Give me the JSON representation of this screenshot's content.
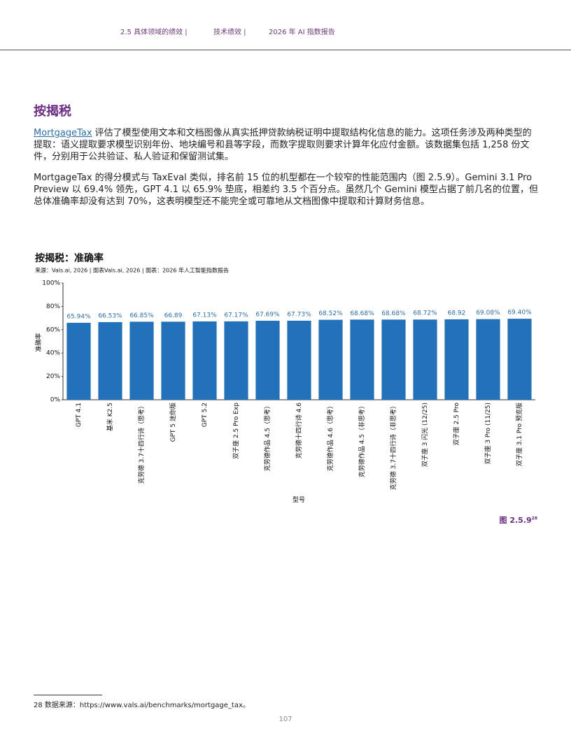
{
  "header": {
    "items": [
      "2.5 具体领域的绩效 |",
      "技术绩效 |",
      "2026 年 AI 指数报告"
    ]
  },
  "section_title": "按揭税",
  "paragraphs": [
    {
      "link": "MortgageTax",
      "text": " 评估了模型使用文本和文档图像从真实抵押贷款纳税证明中提取结构化信息的能力。这项任务涉及两种类型的提取：语义提取要求模型识别年份、地块编号和县等字段，而数字提取则要求计算年化应付金额。该数据集包括 1,258 份文件，分别用于公共验证、私人验证和保留测试集。"
    },
    {
      "text": "MortgageTax 的得分模式与 TaxEval 类似，排名前 15 位的机型都在一个较窄的性能范围内（图 2.5.9）。Gemini 3.1 Pro Preview 以 69.4% 领先，GPT 4.1 以 65.9% 垫底，相差约 3.5 个百分点。虽然几个 Gemini 模型占据了前几名的位置，但总体准确率却没有达到 70%，这表明模型还不能完全或可靠地从文档图像中提取和计算财务信息。"
    }
  ],
  "chart_data": {
    "type": "bar",
    "title": "按揭税：准确率",
    "source": "来源：Vals.ai, 2026 | 图表Vals.ai, 2026 | 图表：2026 年人工智能指数报告",
    "x_label": "型号",
    "y_label": "准确率",
    "categories": [
      "GPT 4.1",
      "基米 K2.5",
      "克劳德 3.7十四行诗（思考）",
      "GPT 5 迷你版",
      "GPT 5.2",
      "双子座 2.5 Pro Exp",
      "克劳德作品 4.5（思考）",
      "克劳德十四行诗 4.6",
      "克劳德作品 4.6（思考）",
      "克劳德作品 4.5（非思考）",
      "克劳德 3.7十四行诗（非思考）",
      "双子座 3 闪光 (12/25)",
      "双子座 2.5 Pro",
      "双子座 3 Pro (11/25)",
      "双子座 3.1 Pro 预览版"
    ],
    "values": [
      65.94,
      66.53,
      66.85,
      66.89,
      67.13,
      67.17,
      67.69,
      67.73,
      68.52,
      68.68,
      68.68,
      68.72,
      68.92,
      69.08,
      69.4
    ],
    "value_labels": [
      "65.94%",
      "66.53%",
      "66.85%",
      "66.89",
      "67.13%",
      "67.17%",
      "67.69%",
      "67.73%",
      "68.52%",
      "68.68%",
      "68.68%",
      "68.72%",
      "68.92",
      "69.08%",
      "69.40%"
    ],
    "color": "#2371b8",
    "label_color": "#2e6da4",
    "ylim": [
      0,
      100
    ],
    "yticks": [
      {
        "value": 0,
        "label": "0%"
      },
      {
        "value": 20,
        "label": "20%"
      },
      {
        "value": 40,
        "label": "40%"
      },
      {
        "value": 60,
        "label": "60%"
      },
      {
        "value": 80,
        "label": "80%"
      },
      {
        "value": 100,
        "label": "100%"
      }
    ]
  },
  "figure_label": "图 2.5.9",
  "figure_note": "28",
  "footnote": "28 数据来源：https://www.vals.ai/benchmarks/mortgage_tax。",
  "page_number": "107"
}
